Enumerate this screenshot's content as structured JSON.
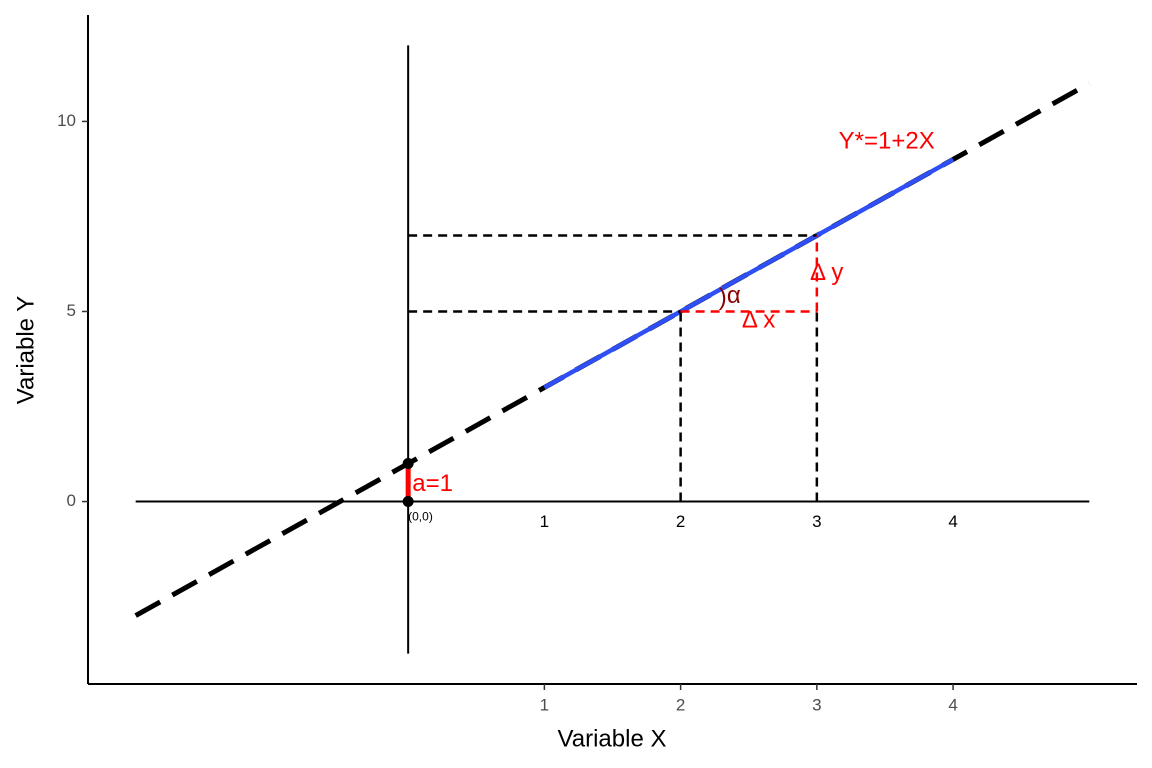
{
  "chart_data": {
    "type": "line",
    "x_label": "Variable X",
    "y_label": "Variable Y",
    "xlim": [
      -2.35,
      5.35
    ],
    "ylim": [
      -4.8,
      12.8
    ],
    "xticks": [
      1,
      2,
      3,
      4
    ],
    "yticks": [
      0,
      5,
      10
    ],
    "lines": [
      {
        "x": [
          -2,
          5
        ],
        "y": [
          -3,
          11
        ],
        "color": "#000000",
        "style": "longdash"
      },
      {
        "x": [
          1,
          4
        ],
        "y": [
          3,
          9
        ],
        "color": "#2e4ff5",
        "style": "solid"
      },
      {
        "x": [
          -2,
          5
        ],
        "y": [
          0,
          0
        ],
        "color": "#000000",
        "style": "thin"
      },
      {
        "x": [
          0,
          0
        ],
        "y": [
          -4,
          12
        ],
        "color": "#000000",
        "style": "thin"
      },
      {
        "x": [
          0,
          3
        ],
        "y": [
          7,
          7
        ],
        "color": "#000000",
        "style": "dashed"
      },
      {
        "x": [
          0,
          2
        ],
        "y": [
          5,
          5
        ],
        "color": "#000000",
        "style": "dashed"
      },
      {
        "x": [
          2,
          2
        ],
        "y": [
          0,
          5
        ],
        "color": "#000000",
        "style": "dashed"
      },
      {
        "x": [
          3,
          3
        ],
        "y": [
          0,
          5
        ],
        "color": "#000000",
        "style": "dashed"
      },
      {
        "x": [
          2,
          3
        ],
        "y": [
          5,
          5
        ],
        "color": "#ff0000",
        "style": "dashed"
      },
      {
        "x": [
          3,
          3
        ],
        "y": [
          5,
          7
        ],
        "color": "#ff0000",
        "style": "dashed"
      },
      {
        "x": [
          0,
          0
        ],
        "y": [
          0,
          1
        ],
        "color": "#ff0000",
        "style": "thick"
      }
    ],
    "points": {
      "x": [
        0,
        0
      ],
      "y": [
        0,
        1
      ],
      "color": "#000000"
    },
    "annotations": [
      {
        "text": "Y*=1+2X",
        "x": 3.16,
        "y": 9.45,
        "color": "#ff0000"
      },
      {
        "text": "Δ y",
        "x": 2.95,
        "y": 6.0,
        "color": "#ff0000"
      },
      {
        "text": "Δ x",
        "x": 2.45,
        "y": 4.74,
        "color": "#ff0000"
      },
      {
        "text": ")",
        "x": 2.28,
        "y": 5.34,
        "color": "#8b0000"
      },
      {
        "text": "α",
        "x": 2.34,
        "y": 5.39,
        "color": "#8b0000"
      },
      {
        "text": "a=1",
        "x": 0.03,
        "y": 0.45,
        "color": "#ff0000"
      },
      {
        "text": "(0,0)",
        "x": 0.0,
        "y": -0.42,
        "color": "#000000"
      }
    ]
  }
}
